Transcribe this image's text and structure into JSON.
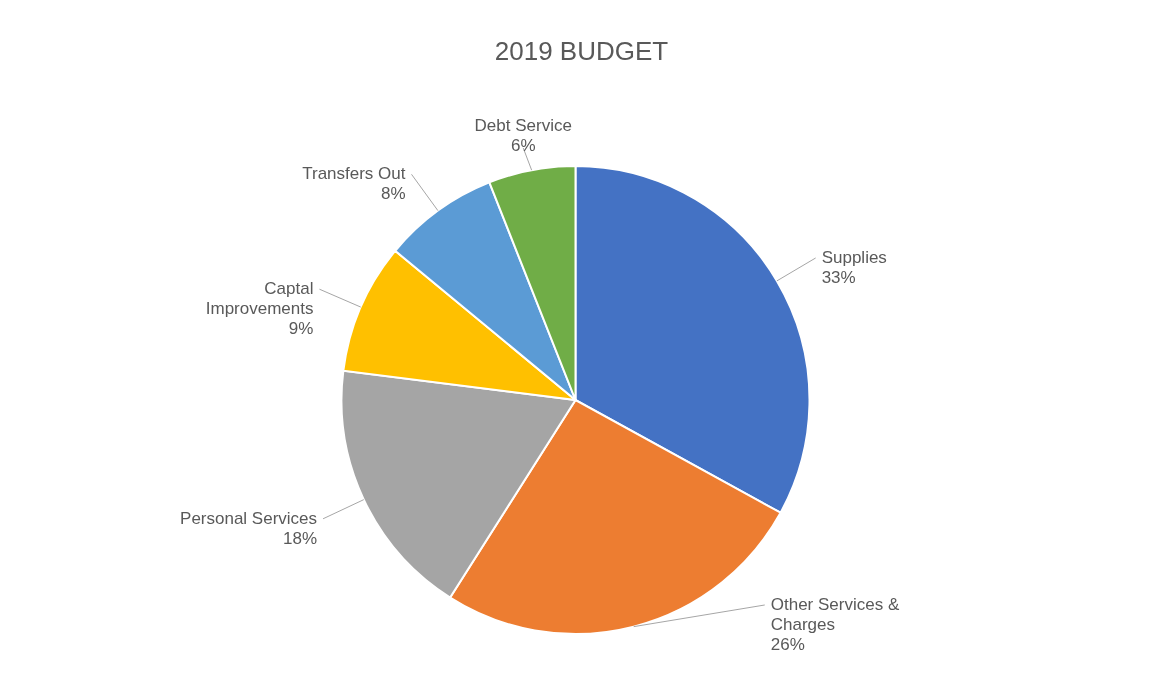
{
  "chart_data": {
    "type": "pie",
    "title": "2019 BUDGET",
    "categories": [
      "Supplies",
      "Other Services & Charges",
      "Personal Services",
      "Captal Improvements",
      "Transfers Out",
      "Debt Service"
    ],
    "values": [
      33,
      26,
      18,
      9,
      8,
      6
    ],
    "colors": [
      "#4472c4",
      "#ed7d31",
      "#a5a5a5",
      "#ffc000",
      "#5b9bd5",
      "#70ad47"
    ],
    "value_labels": [
      "33%",
      "26%",
      "18%",
      "9%",
      "8%",
      "6%"
    ]
  }
}
